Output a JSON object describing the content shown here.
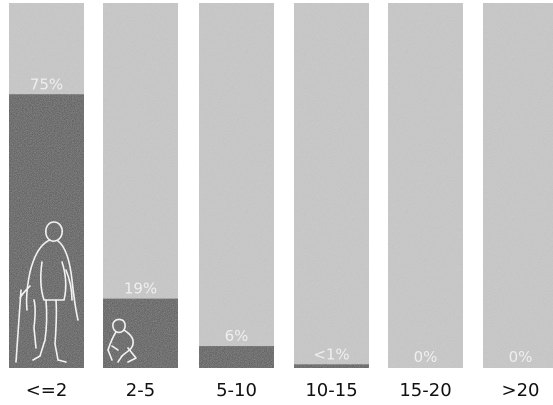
{
  "chart_data": {
    "type": "bar",
    "title": "",
    "xlabel": "",
    "ylabel": "",
    "ylim": [
      0,
      100
    ],
    "categories": [
      "<=2",
      "2-5",
      "5-10",
      "10-15",
      "15-20",
      ">20"
    ],
    "values": [
      75,
      19,
      6,
      1,
      0,
      0
    ],
    "value_labels": [
      "75%",
      "19%",
      "6%",
      "<1%",
      "0%",
      "0%"
    ],
    "colors": {
      "track": "#c9c9c9",
      "fill": "#5a5a5a",
      "label_text": "#f4f4f4",
      "category_text": "#111111"
    },
    "icons": [
      "elderly-person-with-cane-icon",
      "crawling-baby-icon"
    ]
  }
}
